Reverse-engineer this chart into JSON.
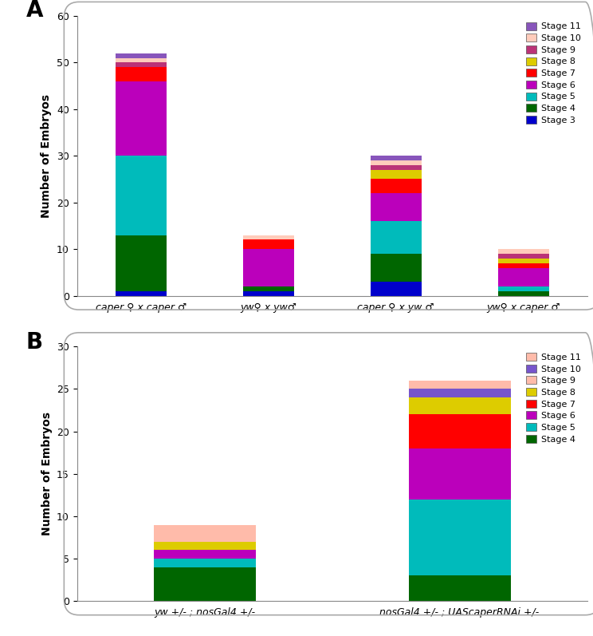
{
  "panel_A": {
    "categories": [
      "caper ♀ x caper ♂",
      "yw♀ x yw♂",
      "caper ♀ x yw ♂",
      "yw♀ x caper ♂"
    ],
    "stages": [
      "Stage 3",
      "Stage 4",
      "Stage 5",
      "Stage 6",
      "Stage 7",
      "Stage 8",
      "Stage 9",
      "Stage 10",
      "Stage 11"
    ],
    "colors": [
      "#0000cc",
      "#006600",
      "#00bbbb",
      "#bb00bb",
      "#ff0000",
      "#ddcc00",
      "#bb3377",
      "#ffccbb",
      "#8855bb"
    ],
    "data": [
      [
        1,
        12,
        17,
        16,
        3,
        0,
        1,
        1,
        1
      ],
      [
        1,
        1,
        0,
        8,
        2,
        0,
        0,
        1,
        0
      ],
      [
        3,
        6,
        7,
        6,
        3,
        2,
        1,
        1,
        1
      ],
      [
        0,
        1,
        1,
        4,
        1,
        1,
        1,
        1,
        0
      ]
    ],
    "ylim": [
      0,
      60
    ],
    "yticks": [
      0,
      10,
      20,
      30,
      40,
      50,
      60
    ],
    "ylabel": "Number of Embryos"
  },
  "panel_B": {
    "categories": [
      "yw +/- ; nosGal4 +/-",
      "nosGal4 +/- ; UAScaperRNAi +/-"
    ],
    "stages": [
      "Stage 4",
      "Stage 5",
      "Stage 6",
      "Stage 7",
      "Stage 8",
      "Stage 9",
      "Stage 10",
      "Stage 11"
    ],
    "colors": [
      "#006600",
      "#00bbbb",
      "#bb00bb",
      "#ff0000",
      "#ddcc00",
      "#ffbbaa",
      "#7755cc",
      "#ffbbaa"
    ],
    "data": [
      [
        4,
        1,
        1,
        0,
        1,
        1,
        0,
        1
      ],
      [
        3,
        9,
        6,
        4,
        2,
        0,
        1,
        1
      ]
    ],
    "ylim": [
      0,
      30
    ],
    "yticks": [
      0,
      5,
      10,
      15,
      20,
      25,
      30
    ],
    "ylabel": "Number of Embryos"
  },
  "background_color": "#ffffff"
}
